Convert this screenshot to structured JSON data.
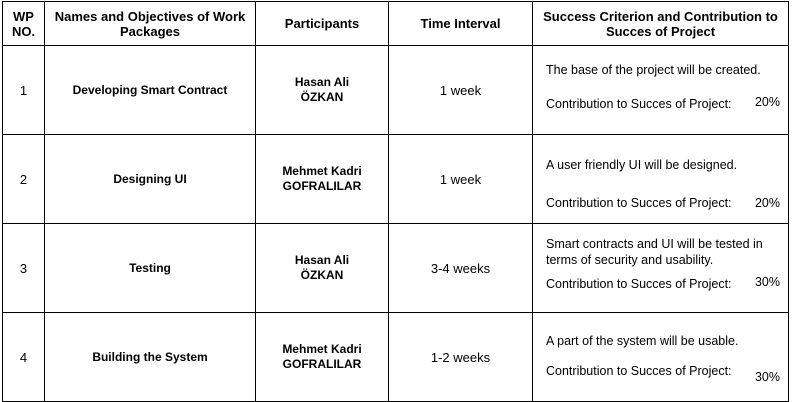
{
  "table": {
    "headers": [
      "WP\nNO.",
      "Names and Objectives of Work Packages",
      "Participants",
      "Time Interval",
      "Success Criterion and Contribution to Succes of Project"
    ],
    "rows": [
      {
        "no": "1",
        "name": "Developing Smart Contract",
        "participants": [
          "Hasan Ali",
          "ÖZKAN"
        ],
        "time": "1 week",
        "criterion": "The base of the project will be created.",
        "contribution_label": "Contribution to Succes of Project:",
        "contribution_value": "20%"
      },
      {
        "no": "2",
        "name": "Designing UI",
        "participants": [
          "Mehmet Kadri",
          "GOFRALILAR"
        ],
        "time": "1 week",
        "criterion": "A user friendly UI will be designed.",
        "contribution_label": "Contribution to Succes of Project:",
        "contribution_value": "20%"
      },
      {
        "no": "3",
        "name": "Testing",
        "participants": [
          "Hasan Ali",
          "ÖZKAN"
        ],
        "time": "3-4 weeks",
        "criterion": "Smart contracts and UI will be tested in terms of security and usability.",
        "contribution_label": "Contribution to Succes of Project:",
        "contribution_value": "30%"
      },
      {
        "no": "4",
        "name": "Building the System",
        "participants": [
          "Mehmet Kadri",
          "GOFRALILAR"
        ],
        "time": "1-2 weeks",
        "criterion": "A part of the system will be usable.",
        "contribution_label": "Contribution to Succes of Project:",
        "contribution_value": "30%"
      }
    ]
  }
}
